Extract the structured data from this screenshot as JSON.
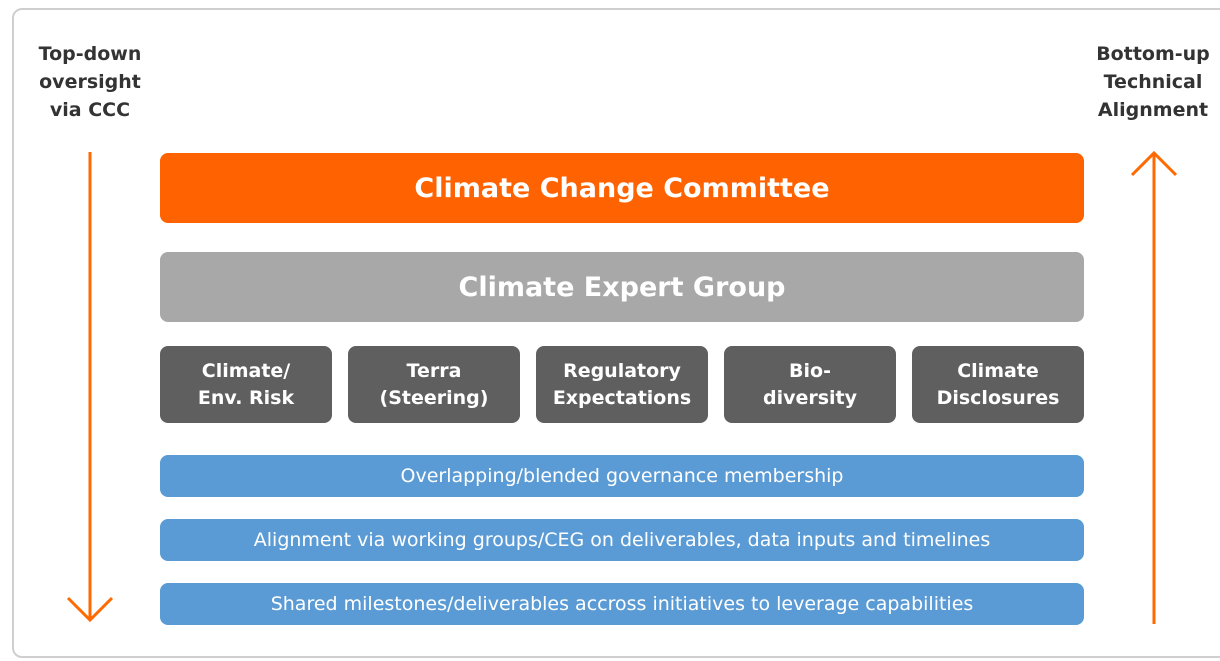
{
  "left_label": [
    "Top-down",
    "oversight",
    "via CCC"
  ],
  "right_label": [
    "Bottom-up",
    "Technical",
    "Alignment"
  ],
  "committee": "Climate Change Committee",
  "expert_group": "Climate Expert Group",
  "workstreams": [
    [
      "Climate/",
      "Env. Risk"
    ],
    [
      "Terra",
      "(Steering)"
    ],
    [
      "Regulatory",
      "Expectations"
    ],
    [
      "Bio-",
      "diversity"
    ],
    [
      "Climate",
      "Disclosures"
    ]
  ],
  "mechanisms": [
    "Overlapping/blended governance membership",
    "Alignment via working groups/CEG on deliverables, data inputs and timelines",
    "Shared milestones/deliverables accross initiatives to leverage capabilities"
  ]
}
